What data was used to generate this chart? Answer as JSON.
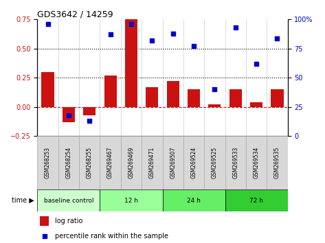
{
  "title": "GDS3642 / 14259",
  "samples": [
    "GSM268253",
    "GSM268254",
    "GSM268255",
    "GSM269467",
    "GSM269469",
    "GSM269471",
    "GSM269507",
    "GSM269524",
    "GSM269525",
    "GSM269533",
    "GSM269534",
    "GSM269535"
  ],
  "log_ratio": [
    0.3,
    -0.13,
    -0.07,
    0.27,
    0.75,
    0.17,
    0.22,
    0.15,
    0.02,
    0.15,
    0.04,
    0.15
  ],
  "percentile": [
    96,
    18,
    13,
    87,
    96,
    82,
    88,
    77,
    40,
    93,
    62,
    84
  ],
  "groups": [
    {
      "label": "baseline control",
      "start": 0,
      "end": 3
    },
    {
      "label": "12 h",
      "start": 3,
      "end": 6
    },
    {
      "label": "24 h",
      "start": 6,
      "end": 9
    },
    {
      "label": "72 h",
      "start": 9,
      "end": 12
    }
  ],
  "group_colors": [
    "#ccffcc",
    "#99ff99",
    "#66ee66",
    "#33cc33"
  ],
  "bar_color": "#cc1111",
  "dot_color": "#0000cc",
  "left_ylim": [
    -0.25,
    0.75
  ],
  "right_ylim": [
    0,
    100
  ],
  "left_yticks": [
    -0.25,
    0,
    0.25,
    0.5,
    0.75
  ],
  "right_yticks": [
    0,
    25,
    50,
    75,
    100
  ],
  "hlines": [
    0.25,
    0.5
  ],
  "col_bg": "#d8d8d8",
  "col_border": "#aaaaaa"
}
